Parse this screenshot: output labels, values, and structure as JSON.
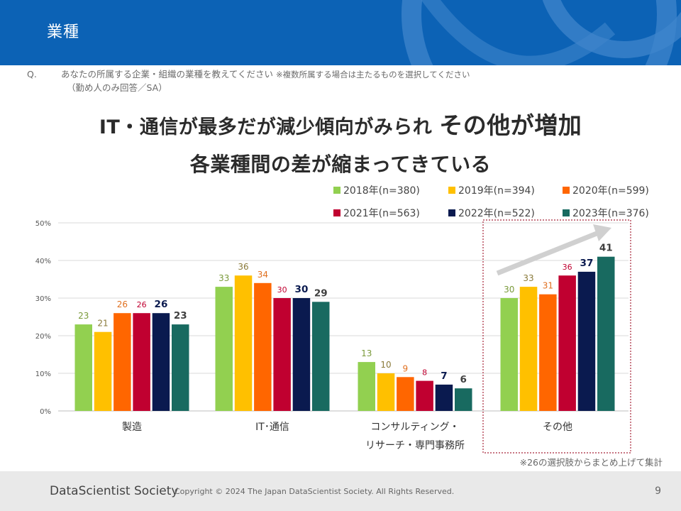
{
  "header": {
    "title": "業種"
  },
  "question": {
    "mark": "Q.",
    "text": "あなたの所属する企業・組織の業種を教えてください",
    "note": "※複数所属する場合は主たるものを選択してください",
    "sub": "（勤め人のみ回答／SA）"
  },
  "headline": {
    "line1_part1": "IT・通信が最多だが減少傾向がみられ",
    "line1_part2": "その他が増加",
    "line2": "各業種間の差が縮まってきている"
  },
  "chart_data": {
    "type": "bar",
    "categories": [
      "製造",
      "IT･通信",
      "コンサルティング・\nリサーチ・専門事務所",
      "その他"
    ],
    "category_labels": [
      [
        "製造"
      ],
      [
        "IT･通信"
      ],
      [
        "コンサルティング・",
        "リサーチ・専門事務所"
      ],
      [
        "その他"
      ]
    ],
    "series": [
      {
        "name": "2018年(n=380)",
        "color": "#92d050",
        "label_color": "#7a9a3a",
        "values": [
          23,
          33,
          13,
          30
        ]
      },
      {
        "name": "2019年(n=394)",
        "color": "#ffc000",
        "label_color": "#8a7a3a",
        "values": [
          21,
          36,
          10,
          33
        ]
      },
      {
        "name": "2020年(n=599)",
        "color": "#ff6600",
        "label_color": "#e07020",
        "values": [
          26,
          34,
          9,
          31
        ]
      },
      {
        "name": "2021年(n=563)",
        "color": "#c00030",
        "label_color": "#c00030",
        "values": [
          26,
          30,
          8,
          36
        ]
      },
      {
        "name": "2022年(n=522)",
        "color": "#0a1a4f",
        "label_color": "#0a1a4f",
        "values": [
          26,
          30,
          7,
          37
        ]
      },
      {
        "name": "2023年(n=376)",
        "color": "#186a60",
        "label_color": "#404040",
        "values": [
          23,
          29,
          6,
          41
        ]
      }
    ],
    "yticks": [
      "0%",
      "10%",
      "20%",
      "30%",
      "40%",
      "50%"
    ],
    "ylim": [
      0,
      50
    ],
    "highlight_category": "その他",
    "title": "",
    "xlabel": "",
    "ylabel": ""
  },
  "footnote": "※26の選択肢からまとめ上げて集計",
  "footer": {
    "logo": "DataScientist Society",
    "copyright": "Copyright © 2024  The Japan DataScientist Society. All Rights Reserved.",
    "page": "9"
  }
}
